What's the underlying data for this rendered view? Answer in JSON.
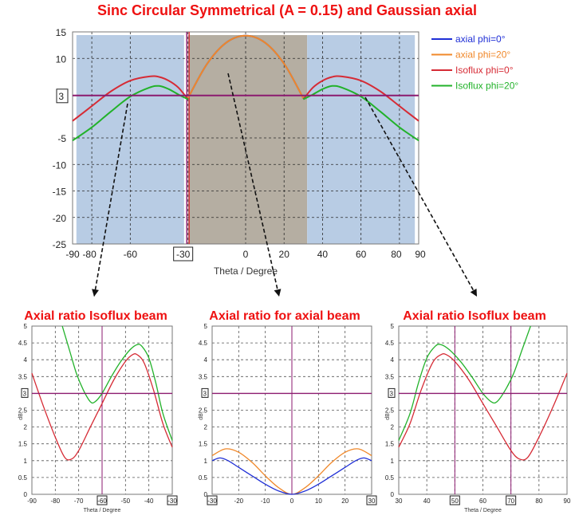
{
  "figure_title": "Sinc Circular Symmetrical (A = 0.15) and Gaussian axial",
  "colors": {
    "axial_phi0": "#1f2fd6",
    "axial_phi20": "#f0882a",
    "isoflux_phi0": "#d62b35",
    "isoflux_phi20": "#22b22a",
    "threshold": "#8b1a6f",
    "isoflux_region": "#b8cce4",
    "axial_region": "#b5aea2"
  },
  "chart_data": [
    {
      "id": "main",
      "type": "line",
      "title": "Sinc Circular Symmetrical (A = 0.15) and Gaussian axial",
      "xlabel": "Theta / Degree",
      "ylabel": "",
      "xlim": [
        -90,
        90
      ],
      "ylim": [
        -25,
        15
      ],
      "xticks": [
        -90,
        -80,
        -60,
        -30,
        0,
        20,
        40,
        60,
        80,
        90
      ],
      "yticks": [
        15,
        10,
        3,
        -5,
        -10,
        -15,
        -20,
        -25
      ],
      "boxed_x": [
        -30
      ],
      "boxed_y": [
        3
      ],
      "hline": 3,
      "vline": -30,
      "grid": true,
      "legend_position": "right",
      "regions": [
        {
          "from": -88,
          "to": -32,
          "kind": "isoflux"
        },
        {
          "from": -30,
          "to": 32,
          "kind": "axial"
        },
        {
          "from": 32,
          "to": 88,
          "kind": "isoflux"
        }
      ],
      "series": [
        {
          "name": "axial phi=0°",
          "color_key": "axial_phi0",
          "x": [
            -30,
            -20,
            -10,
            0,
            10,
            20,
            30
          ],
          "y": [
            2.5,
            9.0,
            13.0,
            14.3,
            13.0,
            9.0,
            2.5
          ]
        },
        {
          "name": "axial phi=20°",
          "color_key": "axial_phi20",
          "x": [
            -30,
            -20,
            -10,
            0,
            10,
            20,
            30
          ],
          "y": [
            2.5,
            9.0,
            13.0,
            14.3,
            13.0,
            9.0,
            2.5
          ]
        },
        {
          "name": "Isoflux phi=0°",
          "color_key": "isoflux_phi0",
          "x": [
            -90,
            -80,
            -70,
            -60,
            -50,
            -45,
            -40,
            -35,
            -30,
            30,
            35,
            40,
            45,
            50,
            60,
            70,
            80,
            90
          ],
          "y": [
            -1.8,
            1.0,
            3.8,
            5.8,
            6.6,
            6.5,
            5.8,
            4.5,
            2.3,
            2.3,
            4.5,
            5.8,
            6.5,
            6.6,
            5.8,
            3.8,
            1.0,
            -1.8
          ]
        },
        {
          "name": "Isoflux phi=20°",
          "color_key": "isoflux_phi20",
          "x": [
            -90,
            -80,
            -70,
            -60,
            -50,
            -45,
            -40,
            -35,
            -30,
            30,
            35,
            40,
            45,
            50,
            60,
            70,
            80,
            90
          ],
          "y": [
            -5.5,
            -3.0,
            0.0,
            2.8,
            4.5,
            4.8,
            4.2,
            3.2,
            2.3,
            2.3,
            3.2,
            4.2,
            4.8,
            4.5,
            2.8,
            0.0,
            -3.0,
            -5.5
          ]
        }
      ]
    },
    {
      "id": "left",
      "type": "line",
      "title": "Axial ratio Isoflux beam",
      "xlabel": "Theta / Degree",
      "ylabel": "dB",
      "xlim": [
        -90,
        -30
      ],
      "ylim": [
        0,
        5
      ],
      "xticks": [
        -90,
        -80,
        -70,
        -60,
        -50,
        -40,
        -30
      ],
      "yticks": [
        0,
        0.5,
        1,
        1.5,
        2,
        2.5,
        3,
        3.5,
        4,
        4.5,
        5
      ],
      "boxed_x": [
        -60,
        -30
      ],
      "boxed_y": [
        3
      ],
      "hline": 3,
      "vlines": [
        -60
      ],
      "grid": true,
      "series": [
        {
          "name": "Isoflux phi=0°",
          "color_key": "isoflux_phi0",
          "x": [
            -90,
            -85,
            -80,
            -76,
            -73,
            -70,
            -65,
            -60,
            -55,
            -50,
            -47,
            -45,
            -42,
            -38,
            -34,
            -30
          ],
          "y": [
            3.6,
            2.6,
            1.7,
            1.1,
            1.05,
            1.3,
            2.0,
            2.7,
            3.4,
            3.95,
            4.15,
            4.15,
            3.9,
            3.1,
            2.1,
            1.4
          ]
        },
        {
          "name": "Isoflux phi=20°",
          "color_key": "isoflux_phi20",
          "x": [
            -77,
            -74,
            -71,
            -68,
            -65,
            -63,
            -60,
            -56,
            -52,
            -48,
            -45,
            -43,
            -40,
            -37,
            -34,
            -30
          ],
          "y": [
            5.0,
            4.3,
            3.6,
            3.1,
            2.75,
            2.75,
            3.0,
            3.5,
            3.95,
            4.3,
            4.45,
            4.4,
            4.05,
            3.3,
            2.4,
            1.6
          ]
        }
      ]
    },
    {
      "id": "center",
      "type": "line",
      "title": "Axial ratio for axial beam",
      "xlabel": "",
      "ylabel": "dB",
      "xlim": [
        -30,
        30
      ],
      "ylim": [
        0,
        5
      ],
      "xticks": [
        -30,
        -20,
        -10,
        0,
        10,
        20,
        30
      ],
      "yticks": [
        0,
        0.5,
        1,
        1.5,
        2,
        2.5,
        3,
        3.5,
        4,
        4.5,
        5
      ],
      "boxed_x": [
        -30,
        30
      ],
      "boxed_y": [
        3
      ],
      "hline": 3,
      "vlines": [
        0
      ],
      "grid": true,
      "series": [
        {
          "name": "axial phi=20°",
          "color_key": "axial_phi20",
          "x": [
            -30,
            -25,
            -20,
            -15,
            -10,
            -5,
            0,
            5,
            10,
            15,
            20,
            25,
            30
          ],
          "y": [
            1.15,
            1.35,
            1.25,
            0.95,
            0.55,
            0.2,
            0.0,
            0.2,
            0.55,
            0.95,
            1.25,
            1.35,
            1.15
          ]
        },
        {
          "name": "axial phi=0°",
          "color_key": "axial_phi0",
          "x": [
            -30,
            -27,
            -24,
            -20,
            -15,
            -10,
            -5,
            0,
            5,
            10,
            15,
            20,
            24,
            27,
            30
          ],
          "y": [
            1.0,
            1.08,
            1.0,
            0.8,
            0.55,
            0.3,
            0.1,
            0.0,
            0.1,
            0.3,
            0.55,
            0.8,
            1.0,
            1.08,
            1.0
          ]
        }
      ]
    },
    {
      "id": "right",
      "type": "line",
      "title": "Axial ratio Isoflux beam",
      "xlabel": "Theta / Degree",
      "ylabel": "dB",
      "xlim": [
        30,
        90
      ],
      "ylim": [
        0,
        5
      ],
      "xticks": [
        30,
        40,
        50,
        60,
        70,
        80,
        90
      ],
      "yticks": [
        0,
        0.5,
        1,
        1.5,
        2,
        2.5,
        3,
        3.5,
        4,
        4.5,
        5
      ],
      "boxed_x": [
        50,
        70
      ],
      "boxed_y": [
        3
      ],
      "hline": 3,
      "vlines": [
        50,
        70
      ],
      "grid": true,
      "series": [
        {
          "name": "Isoflux phi=0°",
          "color_key": "isoflux_phi0",
          "x": [
            30,
            34,
            38,
            42,
            45,
            47,
            50,
            55,
            60,
            65,
            70,
            73,
            76,
            80,
            85,
            90
          ],
          "y": [
            1.4,
            2.1,
            3.1,
            3.9,
            4.15,
            4.15,
            3.95,
            3.4,
            2.7,
            2.0,
            1.3,
            1.05,
            1.1,
            1.7,
            2.6,
            3.6
          ]
        },
        {
          "name": "Isoflux phi=20°",
          "color_key": "isoflux_phi20",
          "x": [
            30,
            34,
            37,
            40,
            43,
            45,
            48,
            52,
            56,
            60,
            63,
            65,
            68,
            71,
            74,
            77
          ],
          "y": [
            1.6,
            2.4,
            3.3,
            4.05,
            4.4,
            4.45,
            4.3,
            3.95,
            3.5,
            3.0,
            2.75,
            2.75,
            3.1,
            3.6,
            4.3,
            5.0
          ]
        }
      ]
    }
  ]
}
